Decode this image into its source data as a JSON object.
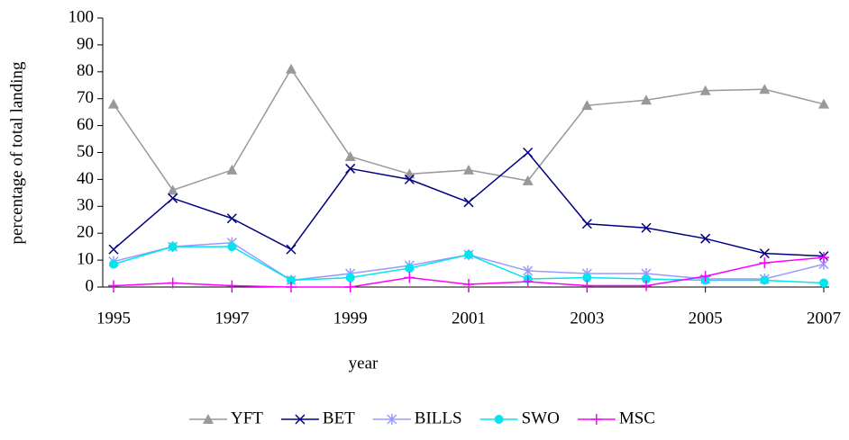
{
  "chart_data": {
    "type": "line",
    "x_label": "year",
    "y_label": "percentage of total landing",
    "x": [
      1995,
      1996,
      1997,
      1998,
      1999,
      2000,
      2001,
      2002,
      2003,
      2004,
      2005,
      2006,
      2007
    ],
    "xlim": [
      1995,
      2007
    ],
    "xticks": [
      1995,
      1997,
      1999,
      2001,
      2003,
      2005,
      2007
    ],
    "ylim": [
      0,
      100
    ],
    "yticks": [
      0,
      10,
      20,
      30,
      40,
      50,
      60,
      70,
      80,
      90,
      100
    ],
    "legend": "bottom",
    "series": [
      {
        "name": "YFT",
        "color": "#999999",
        "marker": "triangle",
        "values": [
          68,
          36,
          43.5,
          81,
          48.5,
          42,
          43.5,
          39.5,
          67.5,
          69.5,
          73,
          73.5,
          68
        ]
      },
      {
        "name": "BET",
        "color": "#000080",
        "marker": "x",
        "values": [
          14,
          33,
          25.5,
          14,
          44,
          40,
          31.5,
          50,
          23.5,
          22,
          18,
          12.5,
          11.5
        ]
      },
      {
        "name": "BILLS",
        "color": "#9999ff",
        "marker": "asterisk",
        "values": [
          9.5,
          15,
          16.5,
          2.5,
          5,
          8,
          12,
          6,
          5,
          5,
          3,
          3,
          8.5
        ]
      },
      {
        "name": "SWO",
        "color": "#00e5ee",
        "marker": "circle",
        "values": [
          8.5,
          15,
          15,
          2.5,
          3.5,
          7,
          12,
          3,
          3.5,
          3,
          2.5,
          2.5,
          1.5
        ]
      },
      {
        "name": "MSC",
        "color": "#ff00ff",
        "marker": "plus",
        "values": [
          0.5,
          1.5,
          0.5,
          0,
          0,
          3.5,
          1,
          2,
          0.5,
          0.5,
          4,
          9,
          11
        ]
      }
    ]
  }
}
